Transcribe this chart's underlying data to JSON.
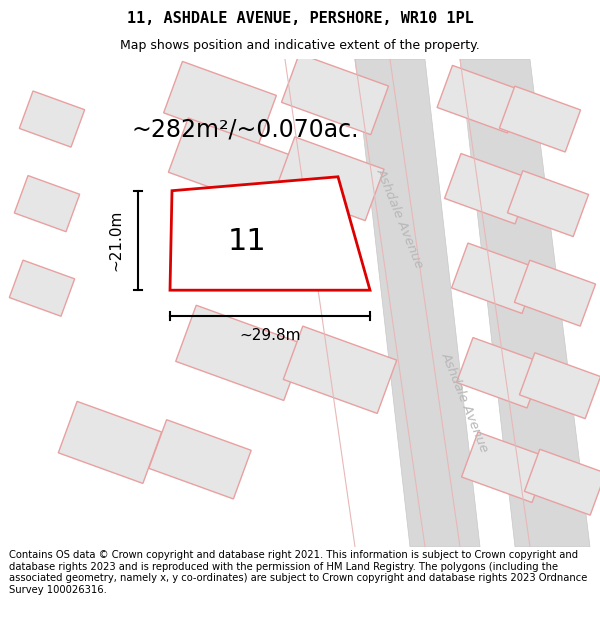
{
  "title": "11, ASHDALE AVENUE, PERSHORE, WR10 1PL",
  "subtitle": "Map shows position and indicative extent of the property.",
  "footer": "Contains OS data © Crown copyright and database right 2021. This information is subject to Crown copyright and database rights 2023 and is reproduced with the permission of HM Land Registry. The polygons (including the associated geometry, namely x, y co-ordinates) are subject to Crown copyright and database rights 2023 Ordnance Survey 100026316.",
  "area_label": "~282m²/~0.070ac.",
  "width_label": "~29.8m",
  "height_label": "~21.0m",
  "number_label": "11",
  "bg_color": "#ffffff",
  "plot_edge_color": "#dd0000",
  "plot_edge_width": 2.0,
  "neighbor_fill": "#e6e6e6",
  "neighbor_edge_pink": "#e8a0a0",
  "neighbor_edge_gray": "#c0c0c0",
  "road_fill": "#d8d8d8",
  "road_edge": "#c0c0c0",
  "street_label_color": "#b0b0b0",
  "title_fontsize": 11,
  "subtitle_fontsize": 9,
  "footer_fontsize": 7.2
}
